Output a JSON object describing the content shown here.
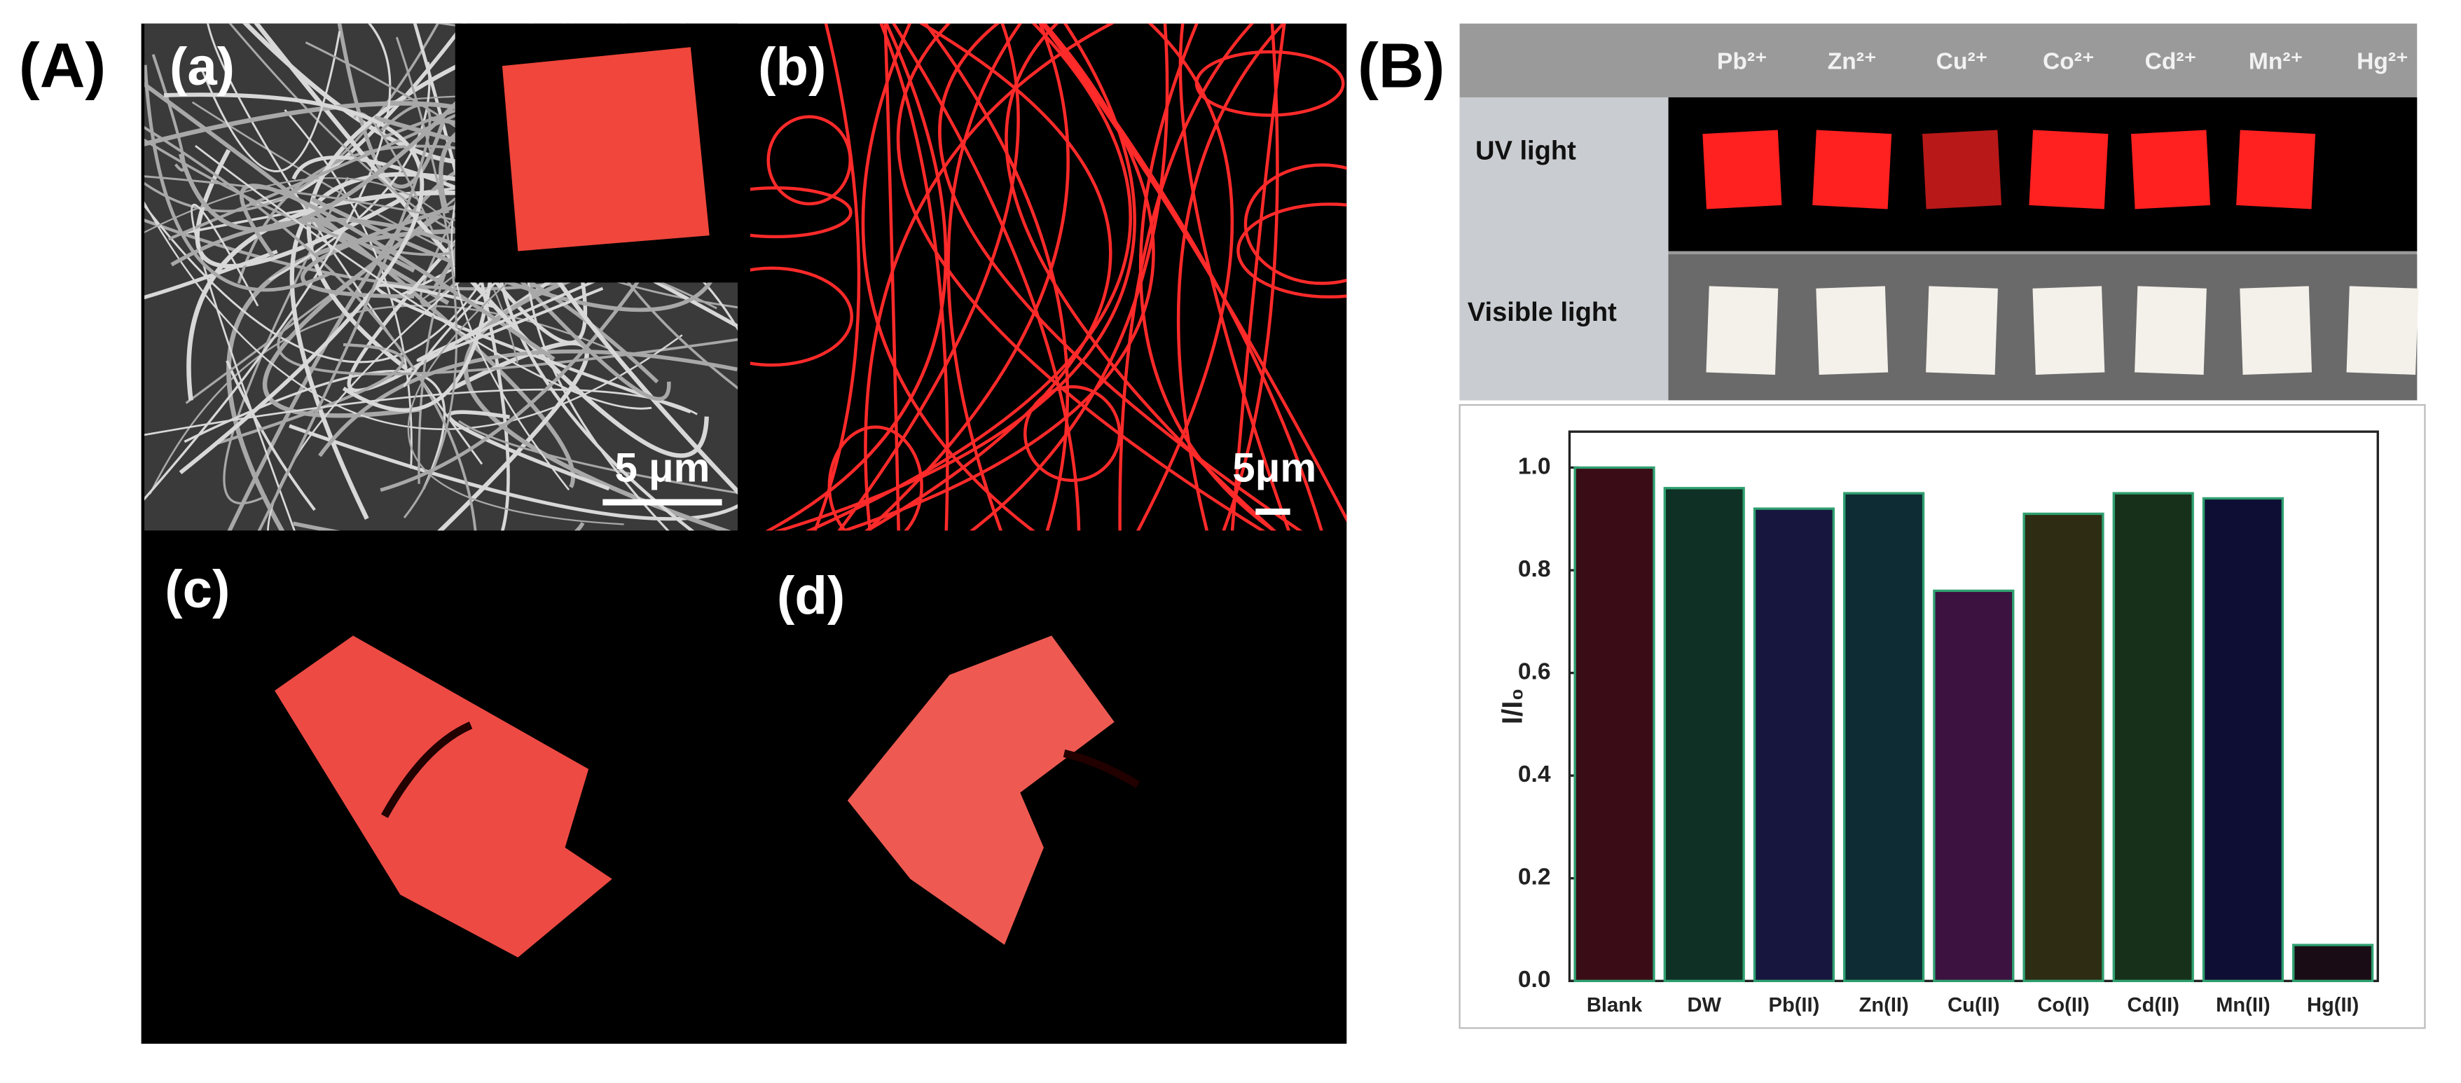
{
  "panel_A": {
    "label": "(A)",
    "subpanels": [
      {
        "label": "(a)",
        "scale_bar": "5 μm"
      },
      {
        "label": "(b)",
        "scale_bar": "5μm"
      },
      {
        "label": "(c)"
      },
      {
        "label": "(d)"
      }
    ]
  },
  "panel_B": {
    "label": "(B)",
    "ions": [
      "Pb²⁺",
      "Zn²⁺",
      "Cu²⁺",
      "Co²⁺",
      "Cd²⁺",
      "Mn²⁺",
      "Hg²⁺"
    ],
    "rows": [
      "UV light",
      "Visible light"
    ]
  },
  "chart_data": {
    "type": "bar",
    "ylabel": "I/I₀",
    "categories": [
      "Blank",
      "DW",
      "Pb(II)",
      "Zn(II)",
      "Cu(II)",
      "Co(II)",
      "Cd(II)",
      "Mn(II)",
      "Hg(II)"
    ],
    "values": [
      1.0,
      0.96,
      0.92,
      0.95,
      0.76,
      0.91,
      0.95,
      0.94,
      0.07
    ],
    "colors": [
      "#3a0c16",
      "#0f3024",
      "#16163e",
      "#0d2c34",
      "#3c1240",
      "#2e2c12",
      "#17301a",
      "#0e0e34",
      "#1a0c14"
    ],
    "edgecolor": "#2fa070",
    "ylim": [
      0,
      1.07
    ],
    "yticks": [
      {
        "value": 0,
        "label": "0.0"
      },
      0.2,
      0.4,
      0.6,
      0.8,
      {
        "value": 1,
        "label": "1.0"
      }
    ]
  }
}
